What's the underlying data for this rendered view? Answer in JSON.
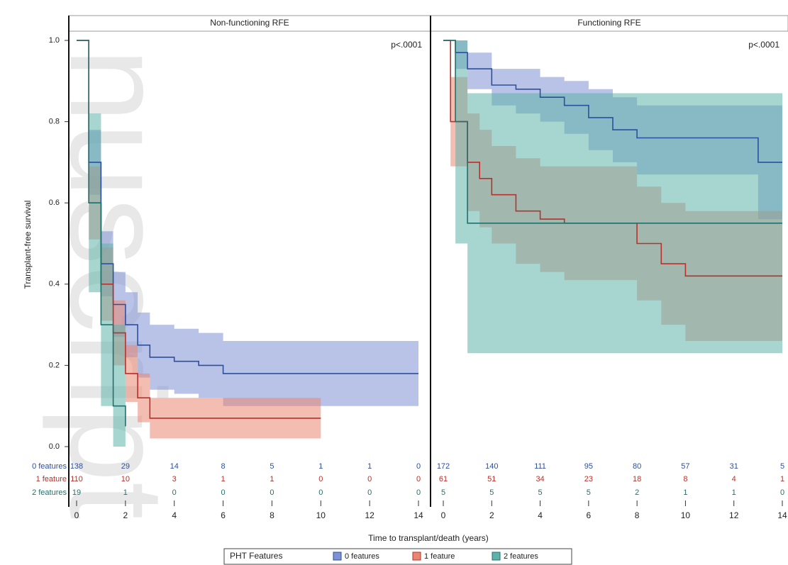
{
  "chart_data": {
    "type": "line",
    "y_label": "Transplant-free survival",
    "x_label": "Time to transplant/death (years)",
    "legend_title": "PHT Features",
    "watermark": "nuscript",
    "xlim": [
      0,
      14
    ],
    "xticks": [
      0,
      2,
      4,
      6,
      8,
      10,
      12,
      14
    ],
    "ylim": [
      0,
      1
    ],
    "yticks": [
      {
        "value": 0,
        "label": "0.0"
      },
      {
        "value": 0.2,
        "label": "0.2"
      },
      {
        "value": 0.4,
        "label": "0.4"
      },
      {
        "value": 0.6,
        "label": "0.6"
      },
      {
        "value": 0.8,
        "label": "0.8"
      },
      {
        "value": 1,
        "label": "1.0"
      }
    ],
    "series": [
      {
        "name": "0 features",
        "color": "#2d4f9e",
        "band_color": "#7f92d3"
      },
      {
        "name": "1 feature",
        "color": "#b8312a",
        "band_color": "#e98672"
      },
      {
        "name": "2 features",
        "color": "#22716d",
        "band_color": "#5fb2aa"
      }
    ],
    "panels": [
      {
        "title": "Non-functioning RFE",
        "pvalue": "p<.0001",
        "curves": [
          {
            "x": [
              0,
              0.5,
              1,
              1.5,
              2,
              2.5,
              3,
              4,
              5,
              6,
              14
            ],
            "y": [
              1.0,
              0.7,
              0.45,
              0.35,
              0.3,
              0.25,
              0.22,
              0.21,
              0.2,
              0.18,
              0.18
            ],
            "lower": [
              1.0,
              0.62,
              0.37,
              0.27,
              0.22,
              0.17,
              0.14,
              0.13,
              0.12,
              0.1,
              0.1
            ],
            "upper": [
              1.0,
              0.78,
              0.53,
              0.43,
              0.38,
              0.33,
              0.3,
              0.29,
              0.28,
              0.26,
              0.26
            ]
          },
          {
            "x": [
              0,
              0.5,
              1,
              1.5,
              2,
              2.5,
              3,
              10
            ],
            "y": [
              1.0,
              0.6,
              0.4,
              0.28,
              0.18,
              0.12,
              0.07,
              0.07
            ],
            "lower": [
              1.0,
              0.51,
              0.31,
              0.2,
              0.11,
              0.06,
              0.02,
              0.02
            ],
            "upper": [
              1.0,
              0.69,
              0.49,
              0.36,
              0.25,
              0.18,
              0.12,
              0.12
            ]
          },
          {
            "x": [
              0,
              0.5,
              1,
              1.5,
              2
            ],
            "y": [
              1.0,
              0.6,
              0.3,
              0.1,
              0.05
            ],
            "lower": [
              1.0,
              0.38,
              0.1,
              0.0,
              0.0
            ],
            "upper": [
              1.0,
              0.82,
              0.5,
              0.3,
              0.2
            ]
          }
        ],
        "at_risk": [
          [
            138,
            29,
            14,
            8,
            5,
            1,
            1,
            0
          ],
          [
            110,
            10,
            3,
            1,
            1,
            0,
            0,
            0
          ],
          [
            19,
            1,
            0,
            0,
            0,
            0,
            0,
            0
          ]
        ]
      },
      {
        "title": "Functioning RFE",
        "pvalue": "p<.0001",
        "curves": [
          {
            "x": [
              0,
              0.5,
              1,
              2,
              3,
              4,
              5,
              6,
              7,
              8,
              10,
              13,
              14
            ],
            "y": [
              1.0,
              0.97,
              0.93,
              0.89,
              0.88,
              0.86,
              0.84,
              0.81,
              0.78,
              0.76,
              0.76,
              0.7,
              0.7
            ],
            "lower": [
              1.0,
              0.93,
              0.88,
              0.84,
              0.82,
              0.8,
              0.77,
              0.73,
              0.7,
              0.67,
              0.67,
              0.56,
              0.56
            ],
            "upper": [
              1.0,
              1.0,
              0.97,
              0.93,
              0.93,
              0.91,
              0.9,
              0.88,
              0.86,
              0.84,
              0.84,
              0.84,
              0.84
            ]
          },
          {
            "x": [
              0,
              0.3,
              1,
              1.5,
              2,
              3,
              4,
              5,
              8,
              9,
              10,
              12,
              14
            ],
            "y": [
              1.0,
              0.8,
              0.7,
              0.66,
              0.62,
              0.58,
              0.56,
              0.55,
              0.5,
              0.45,
              0.42,
              0.42,
              0.42
            ],
            "lower": [
              1.0,
              0.69,
              0.58,
              0.54,
              0.5,
              0.45,
              0.43,
              0.41,
              0.36,
              0.3,
              0.26,
              0.26,
              0.26
            ],
            "upper": [
              1.0,
              0.91,
              0.82,
              0.78,
              0.74,
              0.71,
              0.69,
              0.69,
              0.64,
              0.6,
              0.58,
              0.58,
              0.58
            ]
          },
          {
            "x": [
              0,
              0.5,
              1,
              14
            ],
            "y": [
              1.0,
              0.8,
              0.55,
              0.55
            ],
            "lower": [
              1.0,
              0.5,
              0.23,
              0.23
            ],
            "upper": [
              1.0,
              1.0,
              0.87,
              0.87
            ]
          }
        ],
        "at_risk": [
          [
            172,
            140,
            111,
            95,
            80,
            57,
            31,
            5
          ],
          [
            61,
            51,
            34,
            23,
            18,
            8,
            4,
            1
          ],
          [
            5,
            5,
            5,
            5,
            2,
            1,
            1,
            0
          ]
        ]
      }
    ]
  }
}
